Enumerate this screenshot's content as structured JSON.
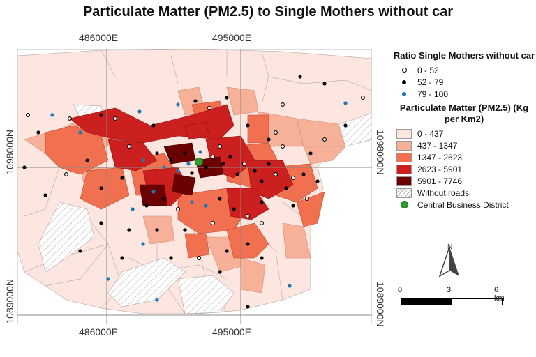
{
  "title": "Particulate Matter (PM2.5) to Single Mothers without car",
  "coords": {
    "top_left": "486000E",
    "top_right": "495000E",
    "bottom_left": "486000E",
    "bottom_right": "495000E",
    "left_upper": "1098000N",
    "left_lower": "1089000N",
    "right_upper": "1098000N",
    "right_lower": "1089000N"
  },
  "legend": {
    "ratio_title": "Ratio Single Mothers without car",
    "ratio_items": [
      {
        "label": "0 - 52",
        "fill": "#ffffff",
        "stroke": "#000000"
      },
      {
        "label": "52 - 79",
        "fill": "#000000",
        "stroke": "#000000"
      },
      {
        "label": "79 - 100",
        "fill": "#1f78b4",
        "stroke": "#1f78b4"
      }
    ],
    "pm_title": "Particulate Matter (PM2.5) (Kg per Km2)",
    "pm_items": [
      {
        "label": "0 - 437",
        "color": "#fde6df"
      },
      {
        "label": "437 - 1347",
        "color": "#f7b199"
      },
      {
        "label": "1347 - 2623",
        "color": "#f0704f"
      },
      {
        "label": "2623 - 5901",
        "color": "#cc1f1f"
      },
      {
        "label": "5901 - 7746",
        "color": "#6b0000"
      }
    ],
    "without_roads": "Without roads",
    "cbd": "Central Business District"
  },
  "north_label": "N",
  "scale": {
    "labels": [
      "0",
      "3",
      "6 km"
    ]
  }
}
